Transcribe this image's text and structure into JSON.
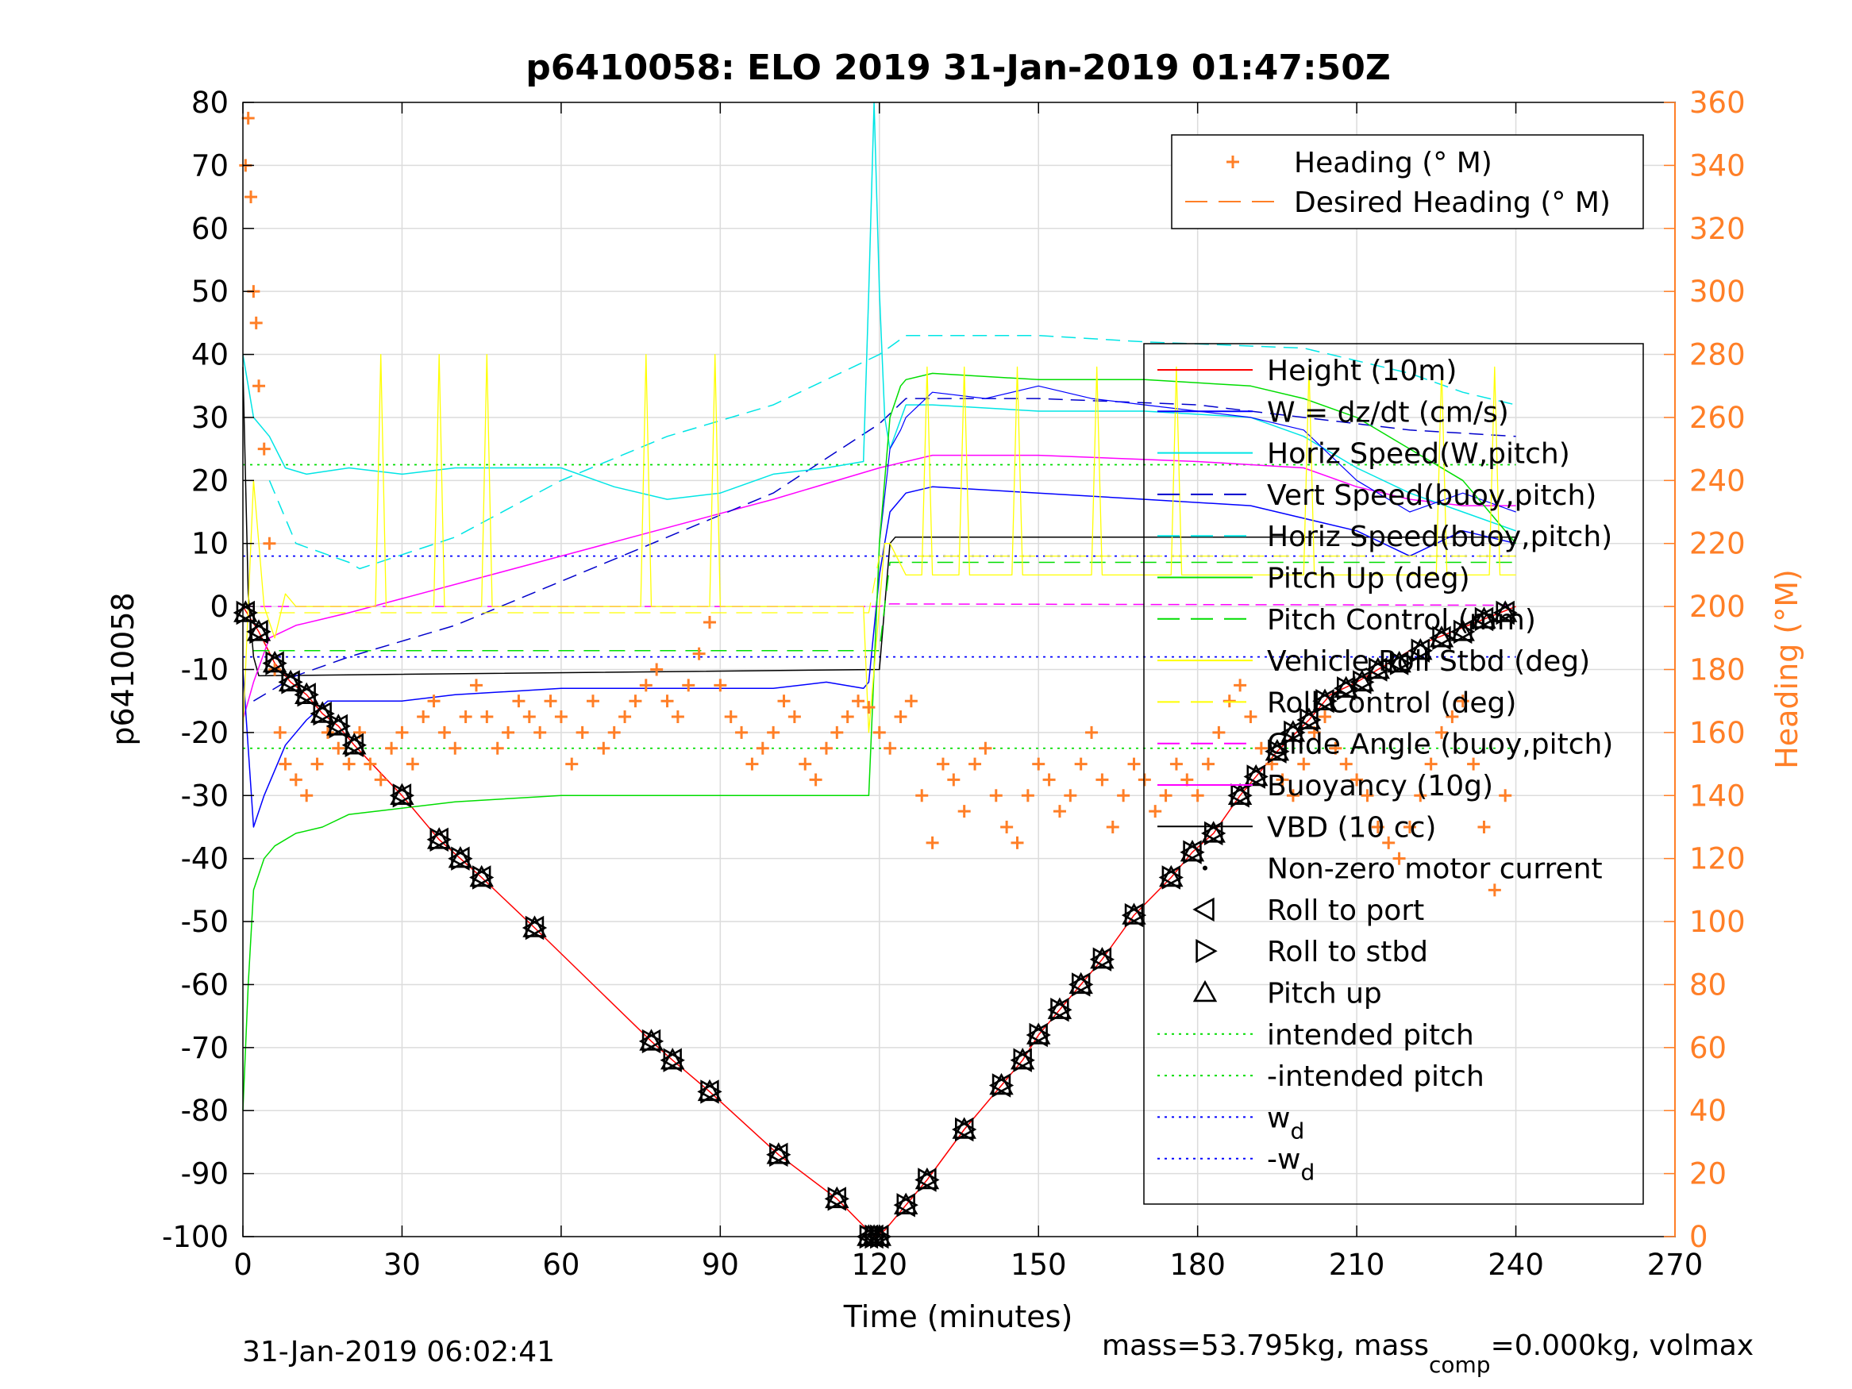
{
  "chart_data": {
    "type": "line",
    "title": "p6410058: ELO 2019 31-Jan-2019 01:47:50Z",
    "xlabel": "Time (minutes)",
    "ylabel": "p6410058",
    "y2label": "Heading (°M)",
    "xlim": [
      0,
      270
    ],
    "ylim": [
      -100,
      80
    ],
    "y2lim": [
      0,
      360
    ],
    "xticks": [
      0,
      30,
      60,
      90,
      120,
      150,
      180,
      210,
      240,
      270
    ],
    "yticks": [
      80,
      70,
      60,
      50,
      40,
      30,
      20,
      10,
      0,
      -10,
      -20,
      -30,
      -40,
      -50,
      -60,
      -70,
      -80,
      -90,
      -100
    ],
    "y2ticks": [
      360,
      340,
      320,
      300,
      280,
      260,
      240,
      220,
      200,
      180,
      160,
      140,
      120,
      100,
      80,
      60,
      40,
      20,
      0
    ],
    "grid": true,
    "footer_left": "31-Jan-2019 06:02:41",
    "footer_right": {
      "p1": "mass=53.795kg, mass",
      "sub": "comp",
      "p2": "=0.000kg, volmax"
    },
    "colors": {
      "heading": "#ff7f27",
      "height": "#ff0000",
      "w": "#0000ff",
      "horiz": "#00e5e5",
      "vert": "#0000cc",
      "pitch": "#00dd00",
      "roll": "#ffff00",
      "glide": "#ff00ff",
      "buoy": "#ff00ff",
      "vbd": "#000000"
    },
    "legend_top": {
      "placement": "top-right",
      "items": [
        {
          "label": "Heading (° M)",
          "color": "#ff7f27",
          "style": "plus"
        },
        {
          "label": "Desired Heading (° M)",
          "color": "#ff7f27",
          "style": "dashed"
        }
      ]
    },
    "legend_main": {
      "placement": "right",
      "items": [
        {
          "label": "Height (10m)",
          "color": "#ff0000",
          "style": "solid"
        },
        {
          "label": "W = dz/dt (cm/s)",
          "color": "#0000ff",
          "style": "solid"
        },
        {
          "label": "Horiz Speed(W,pitch)",
          "color": "#00e5e5",
          "style": "solid"
        },
        {
          "label": "Vert Speed(buoy,pitch)",
          "color": "#0000cc",
          "style": "dashed"
        },
        {
          "label": "Horiz Speed(buoy,pitch)",
          "color": "#00e5e5",
          "style": "dashed"
        },
        {
          "label": "Pitch Up (deg)",
          "color": "#00dd00",
          "style": "solid"
        },
        {
          "label": "Pitch Control (mm)",
          "color": "#00dd00",
          "style": "dashed"
        },
        {
          "label": "Vehicle Roll Stbd (deg)",
          "color": "#ffff00",
          "style": "solid"
        },
        {
          "label": "Roll Control (deg)",
          "color": "#ffff00",
          "style": "dashed"
        },
        {
          "label": "Glide Angle (buoy,pitch)",
          "color": "#ff00ff",
          "style": "dashed"
        },
        {
          "label": "Buoyancy (10g)",
          "color": "#ff00ff",
          "style": "solid"
        },
        {
          "label": "VBD (10 cc)",
          "color": "#000000",
          "style": "solid"
        },
        {
          "label": "Non-zero motor current",
          "color": "#000000",
          "style": "dot"
        },
        {
          "label": "Roll to port",
          "color": "#000000",
          "style": "tri-left"
        },
        {
          "label": "Roll to stbd",
          "color": "#000000",
          "style": "tri-right"
        },
        {
          "label": "Pitch up",
          "color": "#000000",
          "style": "tri-up"
        },
        {
          "label": "intended pitch",
          "color": "#00dd00",
          "style": "dotted"
        },
        {
          "label": "-intended pitch",
          "color": "#00dd00",
          "style": "dotted"
        },
        {
          "label": "w",
          "sub": "d",
          "color": "#0000ff",
          "style": "dotted"
        },
        {
          "label": "-w",
          "sub": "d",
          "color": "#0000ff",
          "style": "dotted"
        }
      ]
    },
    "series": [
      {
        "name": "Height (10m)",
        "color": "#ff0000",
        "dash": "",
        "width": 1.5,
        "x": [
          0,
          3,
          6,
          9,
          12,
          15,
          18,
          21,
          30,
          37,
          41,
          45,
          55,
          77,
          81,
          88,
          101,
          112,
          119,
          121,
          125,
          129,
          136,
          143,
          147,
          150,
          154,
          158,
          162,
          168,
          175,
          179,
          183,
          188,
          195,
          201,
          205,
          210,
          216,
          222,
          228,
          234,
          240
        ],
        "y": [
          0,
          -4,
          -9,
          -12,
          -14,
          -17,
          -19,
          -22,
          -30,
          -37,
          -40,
          -43,
          -51,
          -69,
          -72,
          -77,
          -87,
          -94,
          -100,
          -99,
          -95,
          -91,
          -83,
          -76,
          -72,
          -68,
          -64,
          -60,
          -56,
          -49,
          -43,
          -39,
          -36,
          -30,
          -23,
          -18,
          -14,
          -12,
          -9,
          -6,
          -4,
          -2,
          0
        ]
      },
      {
        "name": "VBD (10 cc)",
        "color": "#000000",
        "dash": "",
        "width": 1.5,
        "x": [
          0,
          1,
          2,
          3,
          120,
          122,
          123,
          240
        ],
        "y": [
          38,
          2,
          -8,
          -11,
          -10,
          10,
          11,
          11
        ]
      },
      {
        "name": "Buoyancy (10g)",
        "color": "#ff00ff",
        "dash": "",
        "width": 1.5,
        "x": [
          0,
          2,
          5,
          10,
          15,
          20,
          60,
          100,
          120,
          130,
          150,
          180,
          200,
          210,
          220,
          230,
          240
        ],
        "y": [
          -18,
          -12,
          -5,
          -3,
          -2,
          -1,
          8,
          17,
          22,
          24,
          24,
          23,
          22,
          19,
          17,
          16,
          16
        ]
      },
      {
        "name": "Glide Angle (buoy,pitch)",
        "color": "#ff00ff",
        "dash": "14,8",
        "width": 1.5,
        "x": [
          0,
          2,
          120,
          122,
          240
        ],
        "y": [
          0,
          0,
          0,
          0.4,
          0.2
        ]
      },
      {
        "name": "Vert Speed(buoy,pitch)",
        "color": "#0000cc",
        "dash": "18,10",
        "width": 1.5,
        "x": [
          2,
          10,
          20,
          40,
          60,
          80,
          100,
          120,
          125,
          150,
          180,
          200,
          220,
          240
        ],
        "y": [
          -15,
          -11,
          -8,
          -3,
          4,
          11,
          18,
          29,
          33,
          33,
          32,
          30,
          28,
          27
        ]
      },
      {
        "name": "Horiz Speed(buoy,pitch)",
        "color": "#00e5e5",
        "dash": "18,10",
        "width": 1.5,
        "x": [
          5,
          10,
          20,
          22,
          40,
          60,
          80,
          100,
          120,
          125,
          150,
          170,
          200,
          220,
          230,
          240
        ],
        "y": [
          20,
          10,
          7,
          6,
          11,
          20,
          27,
          32,
          40,
          43,
          43,
          42,
          41,
          37,
          34,
          32
        ]
      },
      {
        "name": "Horiz Speed(W,pitch)",
        "color": "#00e5e5",
        "dash": "",
        "width": 1.5,
        "x": [
          0,
          2,
          5,
          8,
          12,
          20,
          30,
          40,
          60,
          70,
          80,
          90,
          100,
          110,
          117,
          118,
          119,
          120,
          121,
          122,
          125,
          130,
          150,
          170,
          190,
          200,
          210,
          220,
          230,
          240
        ],
        "y": [
          40,
          30,
          27,
          22,
          21,
          22,
          21,
          22,
          22,
          19,
          17,
          18,
          21,
          22,
          23,
          50,
          80,
          50,
          30,
          25,
          32,
          32,
          31,
          31,
          30,
          27,
          22,
          18,
          15,
          12
        ]
      },
      {
        "name": "W = dz/dt (cm/s)",
        "color": "#0000ff",
        "dash": "",
        "width": 1.5,
        "x": [
          0,
          2,
          4,
          8,
          12,
          16,
          20,
          30,
          40,
          60,
          80,
          100,
          110,
          117,
          118,
          120,
          122,
          125,
          130,
          150,
          170,
          190,
          200,
          210,
          220,
          230,
          240
        ],
        "y": [
          -10,
          -35,
          -30,
          -22,
          -18,
          -15,
          -15,
          -15,
          -14,
          -13,
          -13,
          -13,
          -12,
          -13,
          -12,
          5,
          15,
          18,
          19,
          18,
          17,
          16,
          14,
          12,
          8,
          12,
          10
        ]
      },
      {
        "name": "W = dz/dt (cm/s) upper",
        "color": "#0000ff",
        "dash": "",
        "width": 1.2,
        "x": [
          120,
          122,
          124,
          125,
          130,
          140,
          150,
          160,
          170,
          180,
          190,
          200,
          210,
          220,
          230,
          240
        ],
        "y": [
          10,
          25,
          28,
          30,
          34,
          33,
          35,
          33,
          32,
          31,
          30,
          28,
          20,
          15,
          18,
          15
        ]
      },
      {
        "name": "Pitch Up (deg)",
        "color": "#00dd00",
        "dash": "",
        "width": 1.5,
        "x": [
          0,
          1,
          2,
          4,
          6,
          10,
          15,
          20,
          30,
          40,
          60,
          80,
          100,
          117,
          118,
          119,
          120,
          122,
          124,
          125,
          130,
          150,
          170,
          190,
          200,
          210,
          220,
          230,
          240
        ],
        "y": [
          -80,
          -60,
          -45,
          -40,
          -38,
          -36,
          -35,
          -33,
          -32,
          -31,
          -30,
          -30,
          -30,
          -30,
          -30,
          -10,
          10,
          30,
          35,
          36,
          37,
          36,
          36,
          35,
          33,
          30,
          25,
          20,
          10
        ]
      },
      {
        "name": "Pitch Control (mm)",
        "color": "#00dd00",
        "dash": "20,12",
        "width": 1.5,
        "x": [
          2,
          118,
          120,
          122,
          240
        ],
        "y": [
          -7,
          -7,
          -7,
          7,
          7
        ]
      },
      {
        "name": "Vehicle Roll Stbd (deg)",
        "color": "#ffff00",
        "dash": "",
        "width": 1.3,
        "x": [
          0,
          2,
          4,
          6,
          8,
          10,
          20,
          25,
          26,
          27,
          30,
          36,
          37,
          38,
          40,
          45,
          46,
          47,
          50,
          60,
          75,
          76,
          77,
          80,
          88,
          89,
          90,
          100,
          117,
          118,
          120,
          121,
          122,
          125,
          128,
          129,
          130,
          135,
          136,
          137,
          140,
          145,
          146,
          147,
          150,
          160,
          161,
          162,
          170,
          175,
          176,
          177,
          180,
          190,
          200,
          201,
          202,
          210,
          220,
          225,
          226,
          227,
          230,
          235,
          236,
          237,
          240
        ],
        "y": [
          -20,
          20,
          0,
          -5,
          2,
          0,
          0,
          0,
          40,
          0,
          0,
          0,
          40,
          0,
          0,
          0,
          40,
          0,
          0,
          0,
          0,
          40,
          0,
          0,
          0,
          40,
          0,
          0,
          0,
          -20,
          0,
          10,
          10,
          5,
          5,
          38,
          5,
          5,
          38,
          5,
          5,
          5,
          38,
          5,
          5,
          5,
          38,
          5,
          5,
          5,
          38,
          5,
          5,
          5,
          5,
          38,
          5,
          5,
          5,
          5,
          38,
          5,
          5,
          5,
          38,
          5,
          5
        ]
      },
      {
        "name": "Roll Control (deg)",
        "color": "#ffff00",
        "dash": "20,12",
        "width": 1.2,
        "x": [
          2,
          118,
          120,
          240
        ],
        "y": [
          -1,
          -1,
          8,
          8
        ]
      }
    ],
    "ref_lines": [
      {
        "name": "intended pitch",
        "value": 22.5,
        "color": "#00dd00"
      },
      {
        "name": "-intended pitch",
        "value": -22.5,
        "color": "#00dd00"
      },
      {
        "name": "w_d",
        "value": 8,
        "color": "#0000ff"
      },
      {
        "name": "-w_d",
        "value": -8,
        "color": "#0000ff"
      }
    ],
    "heading_points": {
      "color": "#ff7f27",
      "x": [
        0.5,
        1,
        1.5,
        2,
        2.5,
        3,
        4,
        5,
        6,
        7,
        8,
        10,
        12,
        14,
        16,
        18,
        20,
        22,
        24,
        26,
        28,
        30,
        32,
        34,
        36,
        38,
        40,
        42,
        44,
        46,
        48,
        50,
        52,
        54,
        56,
        58,
        60,
        62,
        64,
        66,
        68,
        70,
        72,
        74,
        76,
        78,
        80,
        82,
        84,
        86,
        88,
        90,
        92,
        94,
        96,
        98,
        100,
        102,
        104,
        106,
        108,
        110,
        112,
        114,
        116,
        118,
        120,
        122,
        124,
        126,
        128,
        130,
        132,
        134,
        136,
        138,
        140,
        142,
        144,
        146,
        148,
        150,
        152,
        154,
        156,
        158,
        160,
        162,
        164,
        166,
        168,
        170,
        172,
        174,
        176,
        178,
        180,
        182,
        184,
        186,
        188,
        190,
        192,
        194,
        196,
        198,
        200,
        202,
        204,
        206,
        208,
        210,
        212,
        214,
        216,
        218,
        220,
        222,
        224,
        226,
        228,
        230,
        232,
        234,
        236,
        238
      ],
      "y": [
        340,
        355,
        330,
        300,
        290,
        270,
        250,
        220,
        180,
        160,
        150,
        145,
        140,
        150,
        160,
        155,
        150,
        160,
        150,
        145,
        155,
        160,
        150,
        165,
        170,
        160,
        155,
        165,
        175,
        165,
        155,
        160,
        170,
        165,
        160,
        170,
        165,
        150,
        160,
        170,
        155,
        160,
        165,
        170,
        175,
        180,
        170,
        165,
        175,
        185,
        195,
        175,
        165,
        160,
        150,
        155,
        160,
        170,
        165,
        150,
        145,
        155,
        160,
        165,
        170,
        168,
        160,
        155,
        165,
        170,
        140,
        125,
        150,
        145,
        135,
        150,
        155,
        140,
        130,
        125,
        140,
        150,
        145,
        135,
        140,
        150,
        160,
        145,
        130,
        140,
        150,
        145,
        135,
        140,
        150,
        145,
        140,
        150,
        160,
        170,
        175,
        165,
        155,
        150,
        145,
        140,
        150,
        160,
        165,
        155,
        150,
        145,
        140,
        130,
        125,
        120,
        130,
        140,
        150,
        160,
        165,
        170,
        150,
        130,
        110,
        140
      ]
    },
    "markers": {
      "x": [
        0.5,
        3,
        6,
        9,
        12,
        15,
        18,
        21,
        30,
        37,
        41,
        45,
        55,
        77,
        81,
        88,
        101,
        112,
        118,
        119,
        120,
        125,
        129,
        136,
        143,
        147,
        150,
        154,
        158,
        162,
        168,
        175,
        179,
        183,
        188,
        191,
        195,
        198,
        201,
        204,
        208,
        211,
        214,
        218,
        222,
        226,
        230,
        234,
        238
      ],
      "y": [
        -1,
        -4,
        -9,
        -12,
        -14,
        -17,
        -19,
        -22,
        -30,
        -37,
        -40,
        -43,
        -51,
        -69,
        -72,
        -77,
        -87,
        -94,
        -100,
        -100,
        -100,
        -95,
        -91,
        -83,
        -76,
        -72,
        -68,
        -64,
        -60,
        -56,
        -49,
        -43,
        -39,
        -36,
        -30,
        -27,
        -23,
        -20,
        -18,
        -15,
        -13,
        -12,
        -10,
        -9,
        -7,
        -5,
        -4,
        -2,
        -1
      ]
    }
  }
}
